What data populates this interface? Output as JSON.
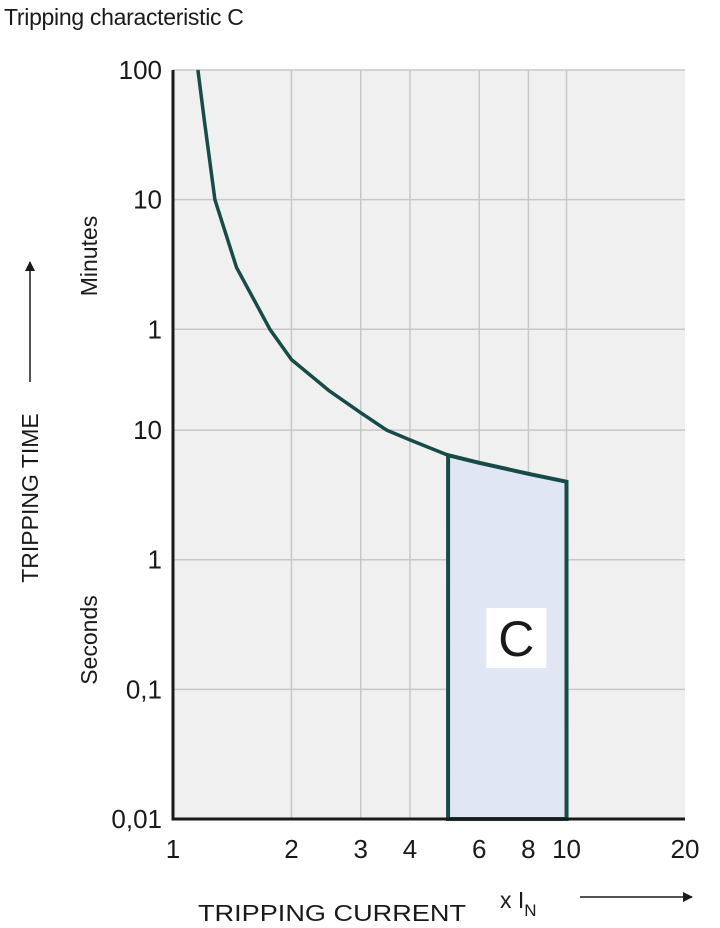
{
  "chart_data": {
    "type": "line",
    "title": "Tripping characteristic C",
    "xlabel": "TRIPPING CURRENT",
    "xunit_prefix": "x I",
    "xunit_sub": "N",
    "ylabel": "TRIPPING TIME",
    "y_group_labels": {
      "minutes": "Minutes",
      "seconds": "Seconds"
    },
    "x_scale": "log",
    "y_scale": "log",
    "xlim": [
      1,
      20
    ],
    "ylim_seconds": [
      0.01,
      6000
    ],
    "grid": true,
    "x_ticks": [
      {
        "value": 1,
        "label": "1"
      },
      {
        "value": 2,
        "label": "2"
      },
      {
        "value": 3,
        "label": "3"
      },
      {
        "value": 4,
        "label": "4"
      },
      {
        "value": 6,
        "label": "6"
      },
      {
        "value": 8,
        "label": "8"
      },
      {
        "value": 10,
        "label": "10"
      },
      {
        "value": 20,
        "label": "20"
      }
    ],
    "y_ticks": [
      {
        "seconds": 6000,
        "label": "100"
      },
      {
        "seconds": 600,
        "label": "10"
      },
      {
        "seconds": 60,
        "label": "1"
      },
      {
        "seconds": 10,
        "label": "10"
      },
      {
        "seconds": 1,
        "label": "1"
      },
      {
        "seconds": 0.1,
        "label": "0,1"
      },
      {
        "seconds": 0.01,
        "label": "0,01"
      }
    ],
    "curve": {
      "x": [
        1.157,
        1.2,
        1.278,
        1.45,
        1.763,
        2.0,
        2.5,
        3.0,
        3.49,
        4.0,
        5.0,
        6.0,
        8.0,
        10.0
      ],
      "y_seconds": [
        6000,
        2500,
        600,
        180,
        60,
        35,
        20,
        13.6,
        10,
        8.4,
        6.4,
        5.6,
        4.6,
        4.0
      ]
    },
    "region": {
      "label": "C",
      "x_from": 5,
      "x_to": 10,
      "y_bottom_seconds": 0.01
    },
    "colors": {
      "curve": "#174b48",
      "region_fill": "#e0e6f3",
      "plot_bg": "#f0f0f0",
      "grid": "#c8c8cc"
    }
  }
}
